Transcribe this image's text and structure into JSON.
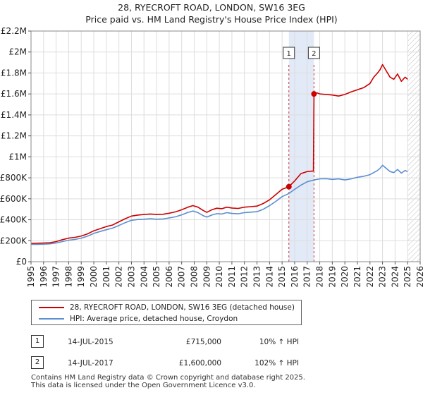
{
  "chart_data": {
    "type": "line",
    "title": "28, RYECROFT ROAD, LONDON, SW16 3EG",
    "subtitle": "Price paid vs. HM Land Registry's House Price Index (HPI)",
    "xlabel": "",
    "ylabel": "",
    "xlim": [
      1995,
      2026
    ],
    "ylim": [
      0,
      2200000
    ],
    "grid": true,
    "x_ticks": [
      "1995",
      "1996",
      "1997",
      "1998",
      "1999",
      "2000",
      "2001",
      "2002",
      "2003",
      "2004",
      "2005",
      "2006",
      "2007",
      "2008",
      "2009",
      "2010",
      "2011",
      "2012",
      "2013",
      "2014",
      "2015",
      "2016",
      "2017",
      "2018",
      "2019",
      "2020",
      "2021",
      "2022",
      "2023",
      "2024",
      "2025",
      "2026"
    ],
    "y_ticks": [
      {
        "value": 0,
        "label": "£0"
      },
      {
        "value": 200000,
        "label": "£200K"
      },
      {
        "value": 400000,
        "label": "£400K"
      },
      {
        "value": 600000,
        "label": "£600K"
      },
      {
        "value": 800000,
        "label": "£800K"
      },
      {
        "value": 1000000,
        "label": "£1M"
      },
      {
        "value": 1200000,
        "label": "£1.2M"
      },
      {
        "value": 1400000,
        "label": "£1.4M"
      },
      {
        "value": 1600000,
        "label": "£1.6M"
      },
      {
        "value": 1800000,
        "label": "£1.8M"
      },
      {
        "value": 2000000,
        "label": "£2M"
      },
      {
        "value": 2200000,
        "label": "£2.2M"
      }
    ],
    "shaded_period": {
      "from": 2015.54,
      "to": 2017.54
    },
    "future_hatch_from": 2025.0,
    "series": [
      {
        "name": "28, RYECROFT ROAD, LONDON, SW16 3EG (detached house)",
        "color": "#cc0000",
        "x": [
          1995.0,
          1995.5,
          1996.0,
          1996.5,
          1997.0,
          1997.5,
          1998.0,
          1998.5,
          1999.0,
          1999.5,
          2000.0,
          2000.5,
          2001.0,
          2001.5,
          2002.0,
          2002.5,
          2003.0,
          2003.5,
          2004.0,
          2004.5,
          2005.0,
          2005.5,
          2006.0,
          2006.5,
          2007.0,
          2007.5,
          2007.9,
          2008.3,
          2008.7,
          2009.0,
          2009.4,
          2009.8,
          2010.2,
          2010.6,
          2011.0,
          2011.5,
          2012.0,
          2012.5,
          2013.0,
          2013.5,
          2014.0,
          2014.5,
          2015.0,
          2015.54,
          2016.0,
          2016.5,
          2017.0,
          2017.5,
          2017.54,
          2017.8,
          2018.0,
          2018.5,
          2019.0,
          2019.5,
          2020.0,
          2020.5,
          2021.0,
          2021.5,
          2022.0,
          2022.3,
          2022.6,
          2022.8,
          2023.0,
          2023.3,
          2023.6,
          2023.9,
          2024.2,
          2024.5,
          2024.8,
          2025.0
        ],
        "y": [
          175000,
          176000,
          178000,
          180000,
          192000,
          210000,
          225000,
          232000,
          245000,
          265000,
          295000,
          315000,
          335000,
          350000,
          380000,
          410000,
          435000,
          445000,
          450000,
          455000,
          450000,
          452000,
          462000,
          475000,
          495000,
          520000,
          535000,
          520000,
          490000,
          470000,
          495000,
          510000,
          505000,
          520000,
          512000,
          508000,
          520000,
          525000,
          530000,
          555000,
          590000,
          640000,
          690000,
          715000,
          770000,
          840000,
          860000,
          865000,
          1600000,
          1610000,
          1600000,
          1595000,
          1590000,
          1580000,
          1595000,
          1620000,
          1640000,
          1660000,
          1700000,
          1760000,
          1800000,
          1830000,
          1880000,
          1820000,
          1760000,
          1740000,
          1790000,
          1720000,
          1760000,
          1740000
        ]
      },
      {
        "name": "HPI: Average price, detached house, Croydon",
        "color": "#5b8fd0",
        "x": [
          1995.0,
          1995.5,
          1996.0,
          1996.5,
          1997.0,
          1997.5,
          1998.0,
          1998.5,
          1999.0,
          1999.5,
          2000.0,
          2000.5,
          2001.0,
          2001.5,
          2002.0,
          2002.5,
          2003.0,
          2003.5,
          2004.0,
          2004.5,
          2005.0,
          2005.5,
          2006.0,
          2006.5,
          2007.0,
          2007.5,
          2007.9,
          2008.3,
          2008.7,
          2009.0,
          2009.4,
          2009.8,
          2010.2,
          2010.6,
          2011.0,
          2011.5,
          2012.0,
          2012.5,
          2013.0,
          2013.5,
          2014.0,
          2014.5,
          2015.0,
          2015.54,
          2016.0,
          2016.5,
          2017.0,
          2017.54,
          2018.0,
          2018.5,
          2019.0,
          2019.5,
          2020.0,
          2020.5,
          2021.0,
          2021.5,
          2022.0,
          2022.3,
          2022.6,
          2022.8,
          2023.0,
          2023.3,
          2023.6,
          2023.9,
          2024.2,
          2024.5,
          2024.8,
          2025.0
        ],
        "y": [
          165000,
          165000,
          167000,
          170000,
          178000,
          192000,
          205000,
          212000,
          225000,
          243000,
          270000,
          288000,
          305000,
          320000,
          345000,
          372000,
          395000,
          402000,
          405000,
          410000,
          405000,
          408000,
          417000,
          428000,
          447000,
          470000,
          483000,
          468000,
          440000,
          425000,
          445000,
          458000,
          455000,
          468000,
          460000,
          457000,
          468000,
          472000,
          477000,
          500000,
          535000,
          575000,
          620000,
          650000,
          690000,
          730000,
          762000,
          780000,
          790000,
          792000,
          785000,
          790000,
          780000,
          790000,
          805000,
          815000,
          830000,
          850000,
          870000,
          890000,
          920000,
          890000,
          860000,
          850000,
          880000,
          845000,
          870000,
          860000
        ]
      }
    ],
    "transactions": [
      {
        "marker": "1",
        "date": "14-JUL-2015",
        "x": 2015.54,
        "price_value": 715000,
        "price": "£715,000",
        "hpi": "10% ↑ HPI"
      },
      {
        "marker": "2",
        "date": "14-JUL-2017",
        "x": 2017.54,
        "price_value": 1600000,
        "price": "£1,600,000",
        "hpi": "102% ↑ HPI"
      }
    ],
    "legend_placement": "below"
  },
  "footer": {
    "line1": "Contains HM Land Registry data © Crown copyright and database right 2025.",
    "line2": "This data is licensed under the Open Government Licence v3.0."
  }
}
